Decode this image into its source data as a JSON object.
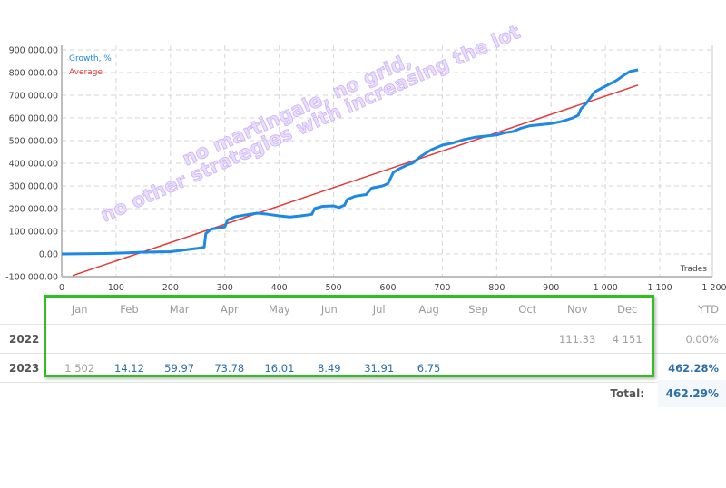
{
  "chart_data": {
    "type": "line",
    "title": "",
    "xlabel": "Trades",
    "ylabel": "",
    "xlim": [
      0,
      1200
    ],
    "ylim": [
      -100000,
      900000
    ],
    "grid": true,
    "legend_position": "top-left",
    "x_ticks": [
      "0",
      "100",
      "200",
      "300",
      "400",
      "500",
      "600",
      "700",
      "800",
      "900",
      "1 000",
      "1 100",
      "1 200"
    ],
    "y_ticks": [
      "900 000.00",
      "800 000.00",
      "700 000.00",
      "600 000.00",
      "500 000.00",
      "400 000.00",
      "300 000.00",
      "200 000.00",
      "100 000.00",
      "0.00",
      "-100 000.00"
    ],
    "legend": [
      {
        "name": "Growth, %",
        "color": "#1e88e5"
      },
      {
        "name": "Average",
        "color": "#e53935"
      }
    ],
    "series": [
      {
        "name": "Growth, %",
        "color": "#1e88e5",
        "x": [
          0,
          80,
          120,
          150,
          200,
          250,
          262,
          265,
          275,
          290,
          300,
          305,
          320,
          345,
          360,
          380,
          400,
          420,
          440,
          460,
          465,
          480,
          500,
          510,
          520,
          525,
          540,
          560,
          570,
          590,
          600,
          610,
          620,
          635,
          645,
          660,
          680,
          700,
          720,
          740,
          760,
          780,
          800,
          815,
          830,
          845,
          860,
          880,
          900,
          920,
          940,
          950,
          955,
          965,
          980,
          1000,
          1020,
          1035,
          1045,
          1060
        ],
        "y": [
          0,
          2000,
          5000,
          8000,
          10000,
          25000,
          30000,
          90000,
          110000,
          115000,
          120000,
          150000,
          165000,
          175000,
          180000,
          175000,
          168000,
          163000,
          168000,
          175000,
          200000,
          210000,
          212000,
          205000,
          215000,
          240000,
          255000,
          262000,
          290000,
          300000,
          310000,
          360000,
          375000,
          392000,
          400000,
          430000,
          460000,
          480000,
          490000,
          505000,
          515000,
          520000,
          525000,
          535000,
          540000,
          555000,
          565000,
          570000,
          575000,
          585000,
          600000,
          612000,
          640000,
          665000,
          715000,
          740000,
          765000,
          790000,
          805000,
          812000
        ]
      },
      {
        "name": "Average",
        "color": "#e53935",
        "x": [
          20,
          1060
        ],
        "y": [
          -95000,
          745000
        ]
      }
    ],
    "annotations": [
      "no martingale, no grid,",
      "no other strategies with increasing the lot"
    ]
  },
  "chart": {
    "legend_growth": "Growth, %",
    "legend_average": "Average",
    "x_axis_label": "Trades",
    "watermark_line1": "no martingale, no grid,",
    "watermark_line2": "no other strategies with increasing the lot"
  },
  "table": {
    "months": [
      "Jan",
      "Feb",
      "Mar",
      "Apr",
      "May",
      "Jun",
      "Jul",
      "Aug",
      "Sep",
      "Oct",
      "Nov",
      "Dec"
    ],
    "ytd_header": "YTD",
    "rows": [
      {
        "year": "2022",
        "values": [
          "",
          "",
          "",
          "",
          "",
          "",
          "",
          "",
          "",
          "",
          "111.33",
          "4 151"
        ],
        "ytd": "0.00%"
      },
      {
        "year": "2023",
        "values": [
          "1 502",
          "14.12",
          "59.97",
          "73.78",
          "16.01",
          "8.49",
          "31.91",
          "6.75",
          "",
          "",
          "",
          ""
        ],
        "ytd": "462.28%"
      }
    ],
    "total_label": "Total:",
    "total_value": "462.29%"
  },
  "colors": {
    "growth": "#1e88e5",
    "average": "#e53935",
    "highlight_border": "#2fbf1f",
    "value_blue": "#2a6fa8"
  }
}
